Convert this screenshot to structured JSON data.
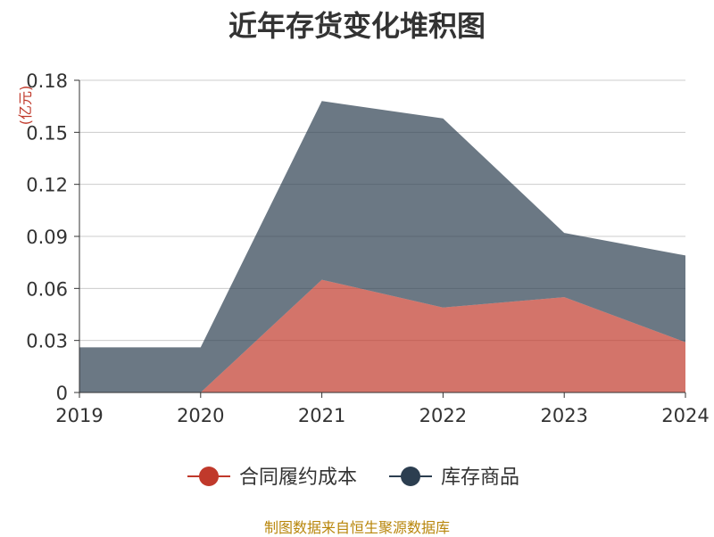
{
  "chart_data": {
    "type": "area",
    "title": "近年存货变化堆积图",
    "unit_label": "(亿元)",
    "x": [
      "2019",
      "2020",
      "2021",
      "2022",
      "2023",
      "2024"
    ],
    "series": [
      {
        "name": "合同履约成本",
        "values": [
          0,
          0,
          0.065,
          0.049,
          0.055,
          0.029
        ],
        "color": "#c0392b"
      },
      {
        "name": "库存商品",
        "values": [
          0.026,
          0.026,
          0.103,
          0.109,
          0.037,
          0.05
        ],
        "color": "#2c3e50"
      }
    ],
    "stacked": true,
    "ylim": [
      0,
      0.18
    ],
    "yticks": [
      "0",
      "0.03",
      "0.06",
      "0.09",
      "0.12",
      "0.15",
      "0.18"
    ],
    "grid": true,
    "legend_position": "bottom"
  },
  "source_note": "制图数据来自恒生聚源数据库"
}
